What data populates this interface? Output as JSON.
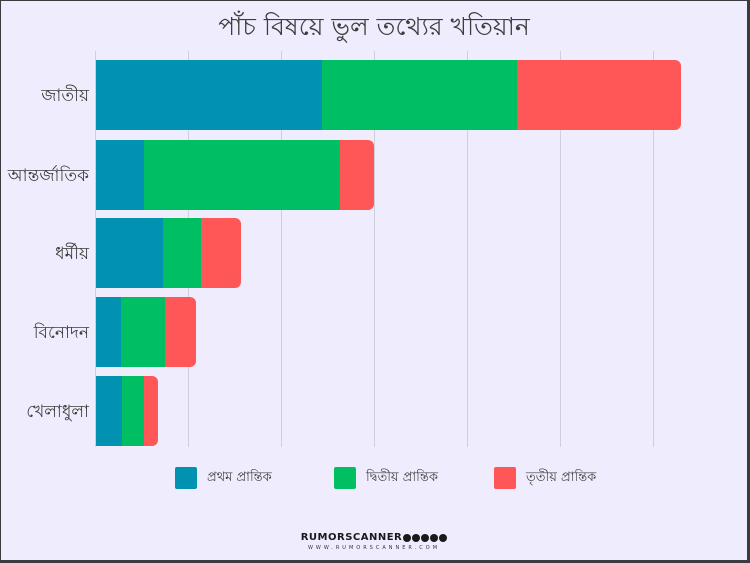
{
  "title": "পাঁচ বিষয়ে ভুল তথ্যের খতিয়ান",
  "colors": {
    "background": "#efedfd",
    "series1": "#0092b0",
    "series2": "#00bf63",
    "series3": "#ff5757",
    "grid": "#cfcfdc",
    "text": "#3d3d3d"
  },
  "chart_data": {
    "type": "bar",
    "orientation": "horizontal",
    "stacked": true,
    "title": "পাঁচ বিষয়ে ভুল তথ্যের খতিয়ান",
    "xlabel": "",
    "ylabel": "",
    "categories": [
      "জাতীয়",
      "আন্তর্জাতিক",
      "ধর্মীয়",
      "বিনোদন",
      "খেলাধুলা"
    ],
    "series": [
      {
        "name": "প্রথম প্রান্তিক",
        "color": "#0092b0",
        "values": [
          24.3,
          5.2,
          7.2,
          2.7,
          2.8
        ]
      },
      {
        "name": "দ্বিতীয় প্রান্তিক",
        "color": "#00bf63",
        "values": [
          21.0,
          21.0,
          4.1,
          4.7,
          2.4
        ]
      },
      {
        "name": "তৃতীয় প্রান্তিক",
        "color": "#ff5757",
        "values": [
          17.6,
          3.7,
          4.3,
          3.3,
          1.5
        ]
      }
    ],
    "xlim": [
      0,
      65
    ],
    "grid": true,
    "grid_step": 10,
    "tick_labels_visible": false,
    "legend_position": "bottom",
    "note": "No axis tick labels shown; values estimated from bar lengths relative to gridlines (arbitrary units, 1 gridline interval = 10)."
  },
  "legend": [
    {
      "label": "প্রথম প্রান্তিক"
    },
    {
      "label": "দ্বিতীয় প্রান্তিক"
    },
    {
      "label": "তৃতীয় প্রান্তিক"
    }
  ],
  "footer": {
    "brand": "RUMORSCANNER",
    "site": "WWW.RUMORSCANNER.COM"
  }
}
